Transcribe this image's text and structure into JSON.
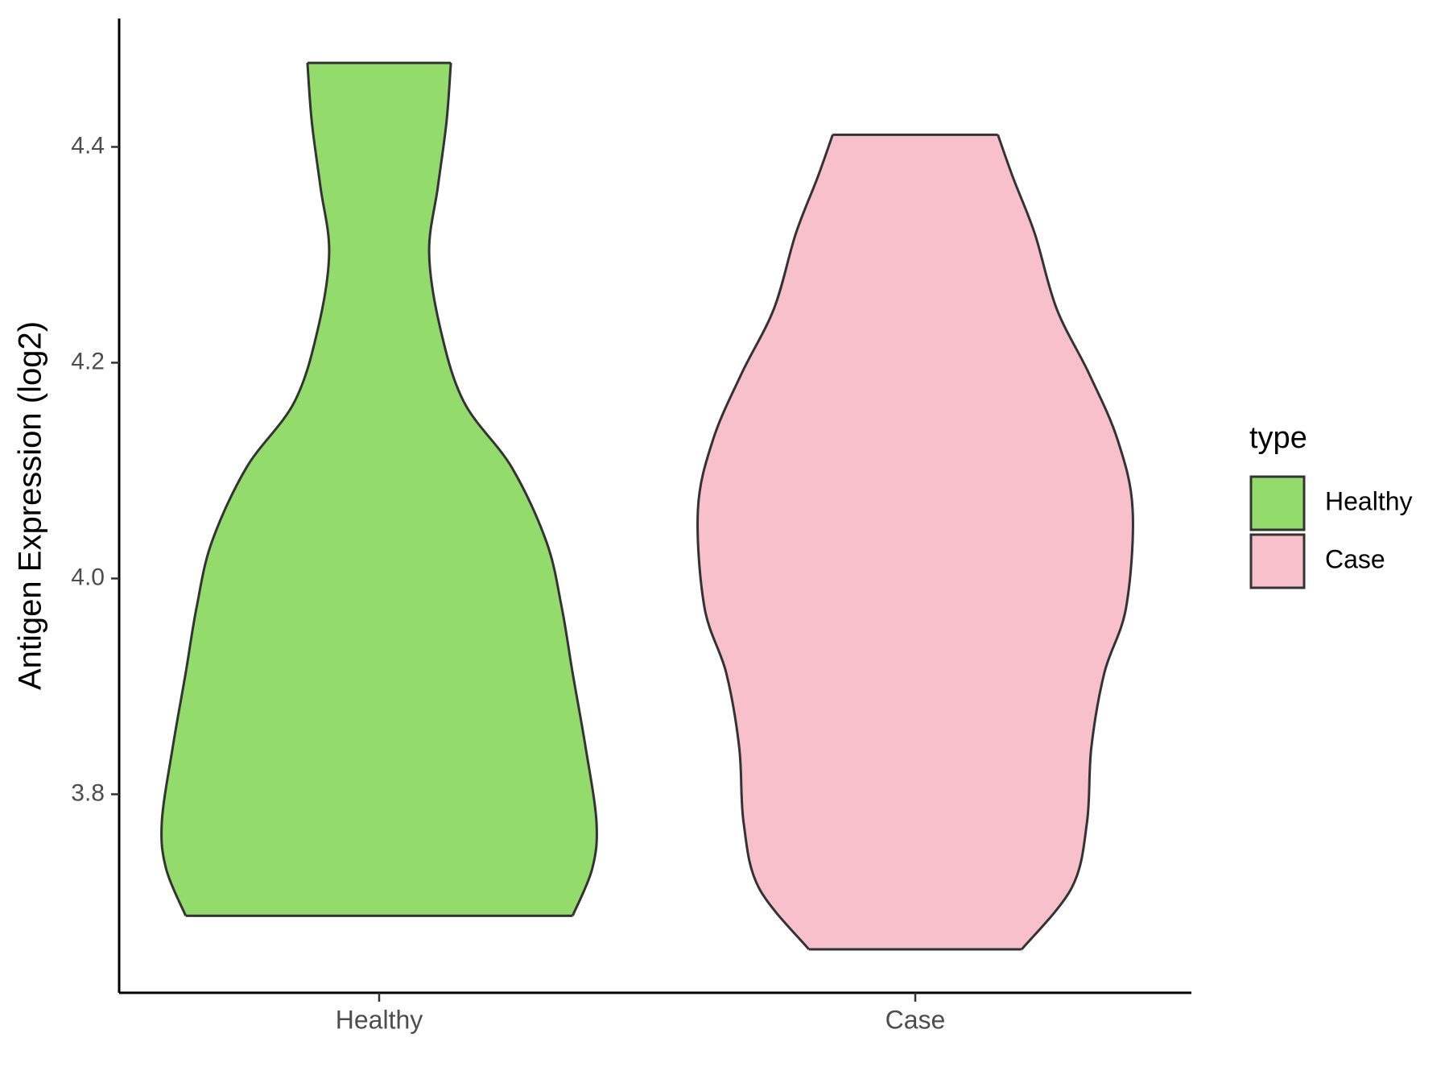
{
  "chart_data": {
    "type": "violin",
    "y_label": "Antigen Expression (log2)",
    "categories": [
      "Healthy",
      "Case"
    ],
    "series": [
      {
        "name": "Healthy",
        "color": "#93dc6b",
        "y": [
          3.6874,
          3.7307,
          3.774,
          3.8433,
          3.9126,
          3.9732,
          4.0338,
          4.103,
          4.1636,
          4.2329,
          4.3022,
          4.3628,
          4.4234,
          4.4779
        ],
        "density": [
          0.89,
          0.98,
          1.0,
          0.95,
          0.89,
          0.84,
          0.77,
          0.61,
          0.39,
          0.28,
          0.23,
          0.27,
          0.31,
          0.33
        ]
      },
      {
        "name": "Case",
        "color": "#f7c0cb",
        "y": [
          3.6563,
          3.7134,
          3.774,
          3.8433,
          3.9126,
          3.9732,
          4.064,
          4.129,
          4.1896,
          4.2502,
          4.3195,
          4.3714,
          4.4113
        ],
        "density": [
          0.49,
          0.72,
          0.79,
          0.81,
          0.87,
          0.97,
          1.0,
          0.93,
          0.8,
          0.65,
          0.55,
          0.45,
          0.38
        ]
      }
    ],
    "legend_title": "type",
    "ylim": [
      3.616,
      4.519
    ],
    "yticks": [
      3.8,
      {
        "value": 4,
        "label": "4.0"
      },
      4.2,
      4.4
    ]
  }
}
